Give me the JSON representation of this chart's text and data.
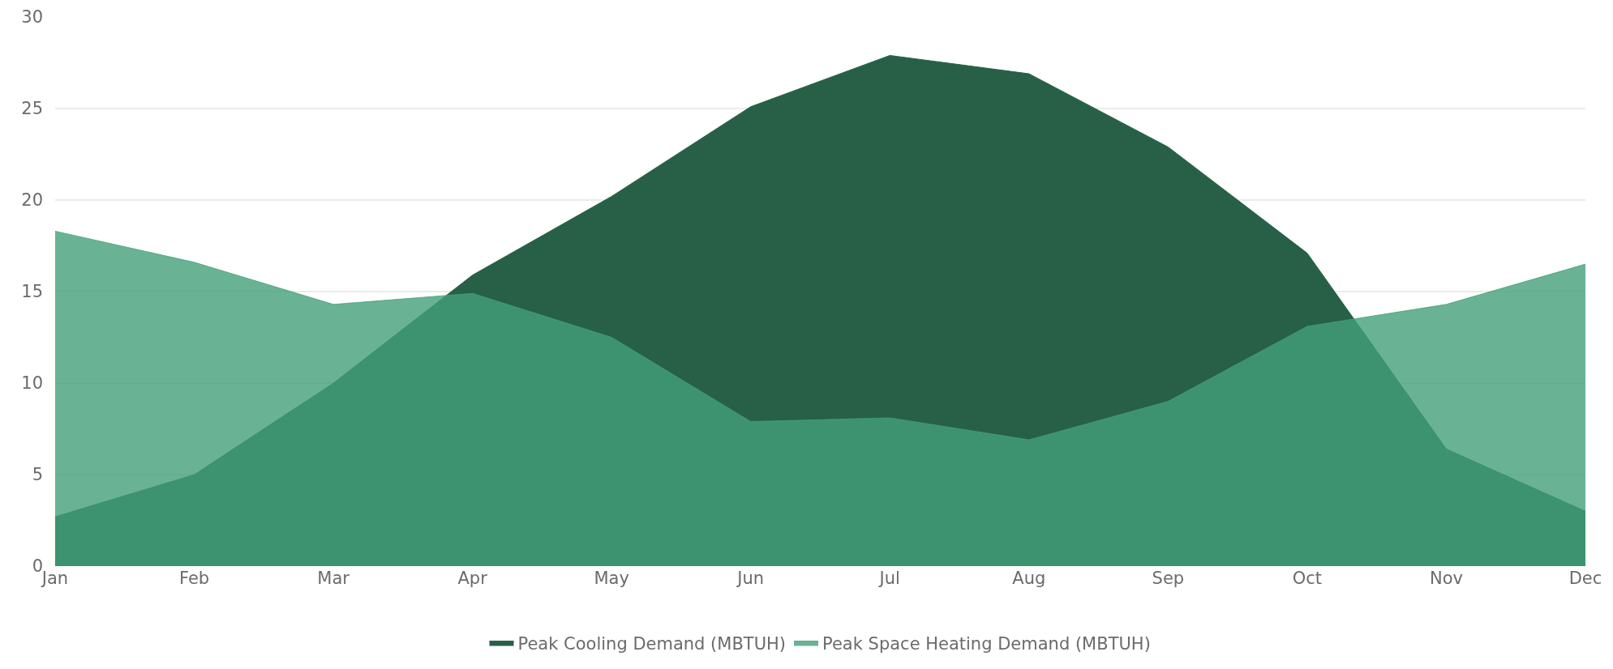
{
  "chart_data": {
    "type": "area",
    "categories": [
      "Jan",
      "Feb",
      "Mar",
      "Apr",
      "May",
      "Jun",
      "Jul",
      "Aug",
      "Sep",
      "Oct",
      "Nov",
      "Dec"
    ],
    "series": [
      {
        "name": "Peak Cooling Demand (MBTUH)",
        "color": "#276047",
        "values": [
          2.7,
          5.0,
          10.0,
          15.9,
          20.2,
          25.1,
          27.9,
          26.9,
          22.9,
          17.1,
          6.4,
          3.0
        ]
      },
      {
        "name": "Peak Space Heating Demand (MBTUH)",
        "color": "#44a079",
        "values": [
          18.3,
          16.6,
          14.3,
          14.9,
          12.5,
          7.9,
          8.1,
          6.9,
          9.0,
          13.1,
          14.3,
          16.5
        ]
      }
    ],
    "ylim": [
      0,
      30
    ],
    "yticks": [
      0,
      5,
      10,
      15,
      20,
      25,
      30
    ],
    "grid": "y",
    "legend": "bottom"
  }
}
